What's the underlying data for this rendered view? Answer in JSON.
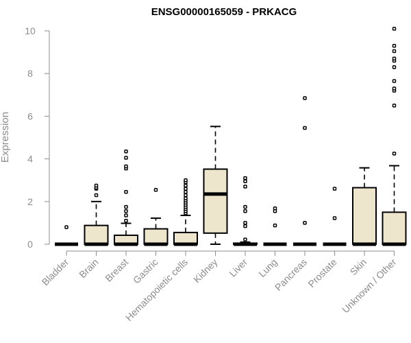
{
  "chart_data": {
    "type": "boxplot",
    "title": "ENSG00000165059 - PRKACG",
    "ylabel": "Expression",
    "xlabel": "",
    "ylim": [
      0,
      10
    ],
    "yticks": [
      0,
      2,
      4,
      6,
      8,
      10
    ],
    "box_fill": "#ede6cc",
    "box_stroke": "#000000",
    "grid": false,
    "categories": [
      "Bladder",
      "Brain",
      "Breast",
      "Gastric",
      "Hematopoietic cells",
      "Kidney",
      "Liver",
      "Lung",
      "Pancreas",
      "Prostate",
      "Skin",
      "Unknown / Other"
    ],
    "boxes": [
      {
        "q1": 0,
        "median": 0,
        "q3": 0,
        "whisker_low": 0,
        "whisker_high": 0,
        "outliers": [
          0.8
        ]
      },
      {
        "q1": 0,
        "median": 0,
        "q3": 0.88,
        "whisker_low": 0,
        "whisker_high": 2.0,
        "outliers": [
          2.3,
          2.6,
          2.65,
          2.75
        ]
      },
      {
        "q1": 0,
        "median": 0,
        "q3": 0.42,
        "whisker_low": 0,
        "whisker_high": 0.98,
        "outliers": [
          1.1,
          1.35,
          1.55,
          1.75,
          2.45,
          3.55,
          3.65,
          4.05,
          4.35
        ]
      },
      {
        "q1": 0,
        "median": 0,
        "q3": 0.72,
        "whisker_low": 0,
        "whisker_high": 1.22,
        "outliers": [
          2.55
        ]
      },
      {
        "q1": 0,
        "median": 0,
        "q3": 0.55,
        "whisker_low": 0,
        "whisker_high": 1.35,
        "outliers": [
          1.45,
          1.55,
          1.65,
          1.75,
          1.85,
          1.95,
          2.05,
          2.15,
          2.3,
          2.45,
          2.6,
          2.75,
          2.9,
          3.0
        ]
      },
      {
        "q1": 0.52,
        "median": 2.35,
        "q3": 3.52,
        "whisker_low": 0,
        "whisker_high": 5.52,
        "outliers": []
      },
      {
        "q1": 0,
        "median": 0,
        "q3": 0.05,
        "whisker_low": 0,
        "whisker_high": 0.1,
        "outliers": [
          0.22,
          0.85,
          1.0,
          1.55,
          1.75,
          2.7,
          2.95,
          3.1
        ]
      },
      {
        "q1": 0,
        "median": 0,
        "q3": 0,
        "whisker_low": 0,
        "whisker_high": 0,
        "outliers": [
          0.88,
          1.55,
          1.68
        ]
      },
      {
        "q1": 0,
        "median": 0,
        "q3": 0,
        "whisker_low": 0,
        "whisker_high": 0,
        "outliers": [
          1.0,
          5.45,
          6.85
        ]
      },
      {
        "q1": 0,
        "median": 0,
        "q3": 0,
        "whisker_low": 0,
        "whisker_high": 0,
        "outliers": [
          1.22,
          2.6
        ]
      },
      {
        "q1": 0,
        "median": 0,
        "q3": 2.65,
        "whisker_low": 0,
        "whisker_high": 3.58,
        "outliers": []
      },
      {
        "q1": 0,
        "median": 0,
        "q3": 1.5,
        "whisker_low": 0,
        "whisker_high": 3.68,
        "outliers": [
          4.25,
          6.5,
          7.2,
          7.3,
          7.65,
          8.3,
          8.6,
          8.7,
          9.05,
          9.3,
          10.1
        ]
      }
    ]
  }
}
